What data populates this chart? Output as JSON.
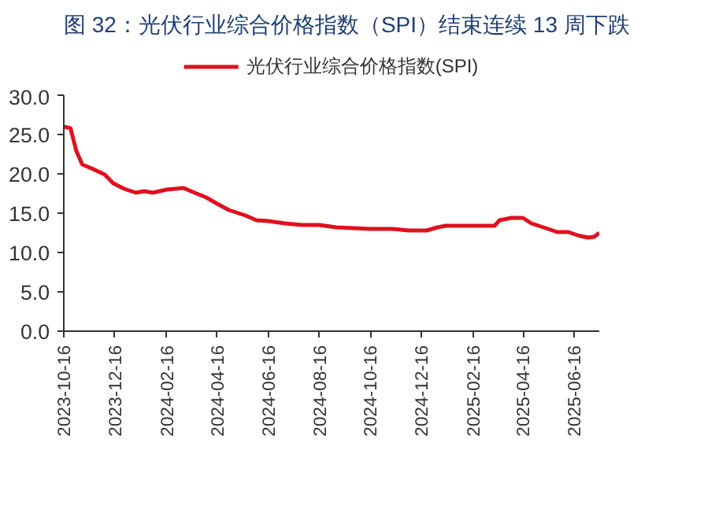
{
  "chart_data": {
    "type": "line",
    "title": "图 32：光伏行业综合价格指数（SPI）结束连续 13 周下跌",
    "x": [
      "2023-10-16",
      "2023-10-24",
      "2023-10-31",
      "2023-11-07",
      "2023-11-20",
      "2023-12-04",
      "2023-12-14",
      "2023-12-27",
      "2024-01-10",
      "2024-01-20",
      "2024-01-30",
      "2024-02-16",
      "2024-03-07",
      "2024-03-20",
      "2024-04-03",
      "2024-04-16",
      "2024-04-30",
      "2024-05-20",
      "2024-06-02",
      "2024-06-16",
      "2024-07-06",
      "2024-07-26",
      "2024-08-16",
      "2024-09-05",
      "2024-09-25",
      "2024-10-16",
      "2024-11-11",
      "2024-12-01",
      "2024-12-22",
      "2025-01-04",
      "2025-01-14",
      "2025-02-16",
      "2025-03-13",
      "2025-03-19",
      "2025-04-02",
      "2025-04-16",
      "2025-04-26",
      "2025-05-13",
      "2025-05-27",
      "2025-06-09",
      "2025-06-23",
      "2025-07-03",
      "2025-07-10",
      "2025-07-16"
    ],
    "series": [
      {
        "name": "光伏行业综合价格指数(SPI)",
        "color": "#e0101e",
        "values": [
          26.0,
          25.8,
          22.9,
          21.2,
          20.6,
          19.9,
          18.8,
          18.1,
          17.6,
          17.8,
          17.6,
          18.0,
          18.2,
          17.6,
          17.0,
          16.2,
          15.4,
          14.7,
          14.1,
          14.0,
          13.7,
          13.5,
          13.5,
          13.2,
          13.1,
          13.0,
          13.0,
          12.8,
          12.8,
          13.2,
          13.4,
          13.4,
          13.4,
          14.1,
          14.4,
          14.4,
          13.7,
          13.1,
          12.6,
          12.6,
          12.1,
          11.9,
          12.0,
          12.5
        ]
      }
    ],
    "xlim": [
      "2023-10-16",
      "2025-07-16"
    ],
    "xticks": [
      "2023-10-16",
      "2023-12-16",
      "2024-02-16",
      "2024-04-16",
      "2024-06-16",
      "2024-08-16",
      "2024-10-16",
      "2024-12-16",
      "2025-02-16",
      "2025-04-16",
      "2025-06-16"
    ],
    "ylim": [
      0,
      30
    ],
    "yticks": [
      {
        "value": 0,
        "label": "0.0"
      },
      {
        "value": 5,
        "label": "5.0"
      },
      {
        "value": 10,
        "label": "10.0"
      },
      {
        "value": 15,
        "label": "15.0"
      },
      {
        "value": 20,
        "label": "20.0"
      },
      {
        "value": 25,
        "label": "25.0"
      },
      {
        "value": 30,
        "label": "30.0"
      }
    ],
    "grid": false,
    "legend": "top",
    "line_style": "solid"
  }
}
